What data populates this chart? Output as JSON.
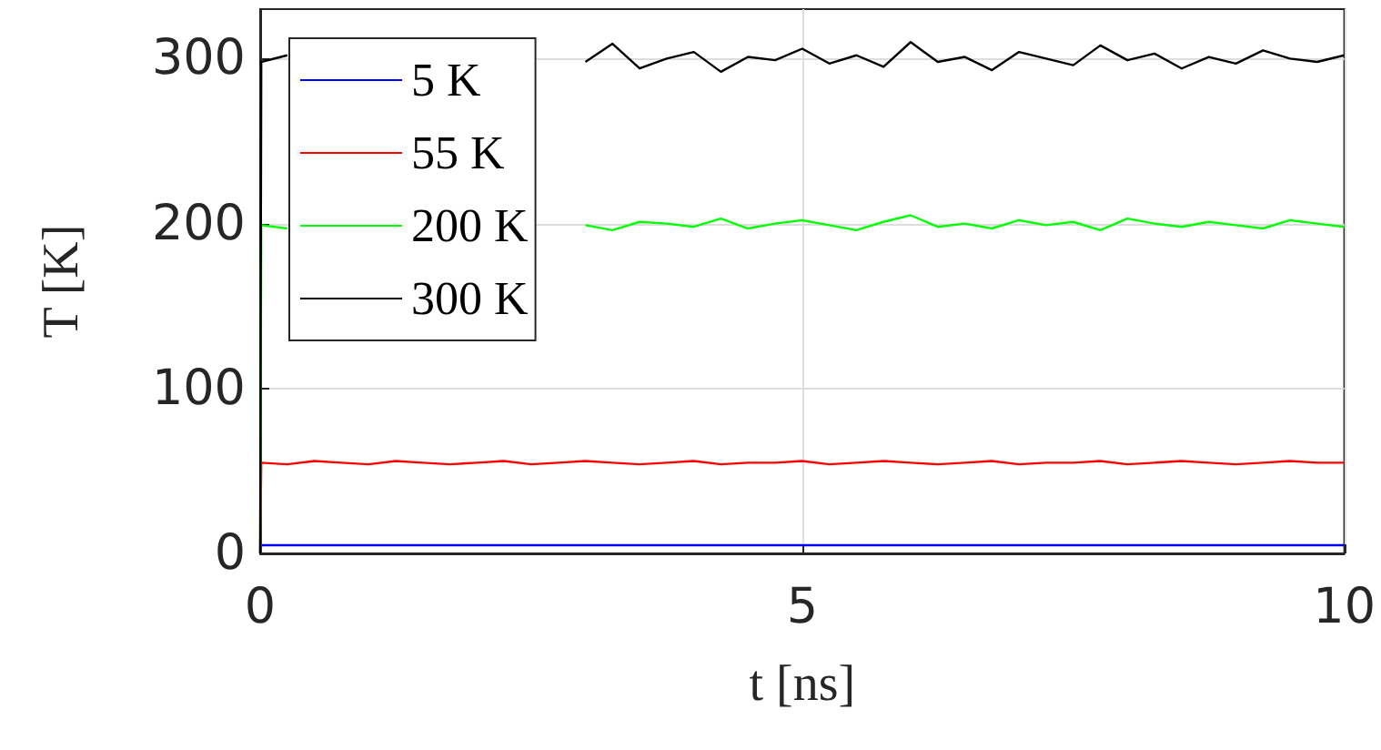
{
  "chart_data": {
    "type": "line",
    "xlabel": "t [ns]",
    "ylabel": "T [K]",
    "x": [
      0,
      0.01,
      0.25,
      0.5,
      0.75,
      1,
      1.25,
      1.5,
      1.75,
      2,
      2.25,
      2.5,
      2.75,
      3,
      3.25,
      3.5,
      3.75,
      4,
      4.25,
      4.5,
      4.75,
      5,
      5.25,
      5.5,
      5.75,
      6,
      6.25,
      6.5,
      6.75,
      7,
      7.25,
      7.5,
      7.75,
      8,
      8.25,
      8.5,
      8.75,
      9,
      9.25,
      9.5,
      9.75,
      10
    ],
    "series": [
      {
        "name": "5 K",
        "color": "#0000ff",
        "values": [
          0,
          5,
          5,
          5,
          5,
          5,
          5,
          5,
          5,
          5,
          5,
          5,
          5,
          5,
          5,
          5,
          5,
          5,
          5,
          5,
          5,
          5,
          5,
          5,
          5,
          5,
          5,
          5,
          5,
          5,
          5,
          5,
          5,
          5,
          5,
          5,
          5,
          5,
          5,
          5,
          5,
          5
        ]
      },
      {
        "name": "55 K",
        "color": "#ff0000",
        "values": [
          0,
          55,
          54,
          56,
          55,
          54,
          56,
          55,
          54,
          55,
          56,
          54,
          55,
          56,
          55,
          54,
          55,
          56,
          54,
          55,
          55,
          56,
          54,
          55,
          56,
          55,
          54,
          55,
          56,
          54,
          55,
          55,
          56,
          54,
          55,
          56,
          55,
          54,
          55,
          56,
          55,
          55
        ]
      },
      {
        "name": "200 K",
        "color": "#00ff00",
        "values": [
          0,
          199,
          197,
          null,
          null,
          null,
          null,
          null,
          null,
          null,
          null,
          null,
          null,
          199,
          196,
          201,
          200,
          198,
          203,
          197,
          200,
          202,
          199,
          196,
          201,
          205,
          198,
          200,
          197,
          202,
          199,
          201,
          196,
          203,
          200,
          198,
          201,
          199,
          197,
          202,
          200,
          198
        ]
      },
      {
        "name": "300 K",
        "color": "#000000",
        "values": [
          0,
          298,
          302,
          null,
          null,
          null,
          null,
          null,
          null,
          null,
          null,
          null,
          null,
          298,
          309,
          294,
          300,
          304,
          292,
          301,
          299,
          306,
          297,
          302,
          295,
          310,
          298,
          301,
          293,
          304,
          300,
          296,
          308,
          299,
          303,
          294,
          301,
          297,
          305,
          300,
          298,
          302
        ]
      }
    ],
    "xlim": [
      0,
      10
    ],
    "xticks": [
      0,
      5,
      10
    ],
    "ylim": [
      0,
      330
    ],
    "yticks": [
      0,
      100,
      200,
      300
    ],
    "grid": true,
    "legend": "top left",
    "marker": "none"
  }
}
